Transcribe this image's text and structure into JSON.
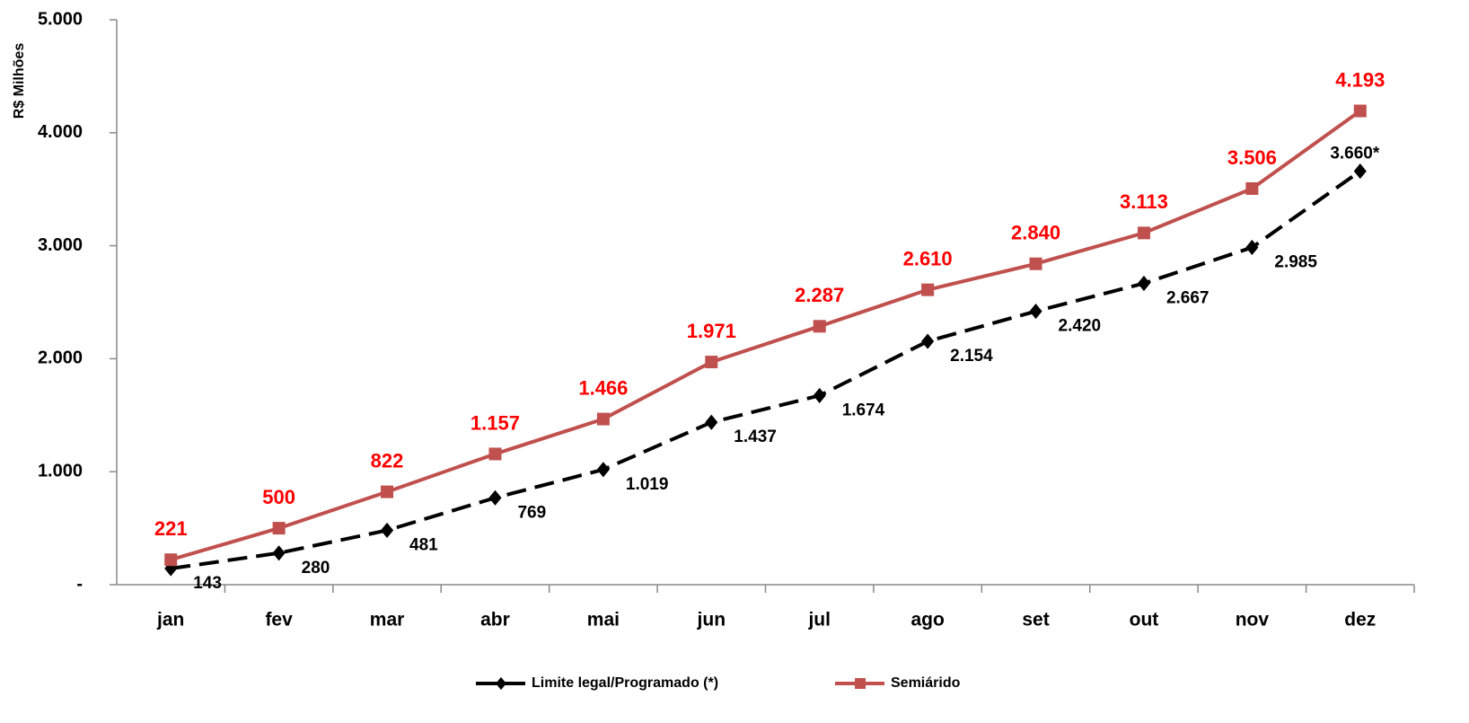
{
  "chart_data": {
    "type": "line",
    "y_label": "R$ Milhões",
    "categories": [
      "jan",
      "fev",
      "mar",
      "abr",
      "mai",
      "jun",
      "jul",
      "ago",
      "set",
      "out",
      "nov",
      "dez"
    ],
    "series": [
      {
        "name": "Limite legal/Programado (*)",
        "color": "#000000",
        "dashed": true,
        "marker": "diamond",
        "values": [
          143,
          280,
          481,
          769,
          1019,
          1437,
          1674,
          2154,
          2420,
          2667,
          2985,
          3660
        ],
        "value_labels": [
          "143",
          "280",
          "481",
          "769",
          "1.019",
          "1.437",
          "1.674",
          "2.154",
          "2.420",
          "2.667",
          "2.985",
          "3.660*"
        ],
        "label_color": "#000000"
      },
      {
        "name": "Semiárido",
        "color": "#c0504d",
        "dashed": false,
        "marker": "square",
        "values": [
          221,
          500,
          822,
          1157,
          1466,
          1971,
          2287,
          2610,
          2840,
          3113,
          3506,
          4193
        ],
        "value_labels": [
          "221",
          "500",
          "822",
          "1.157",
          "1.466",
          "1.971",
          "2.287",
          "2.610",
          "2.840",
          "3.113",
          "3.506",
          "4.193"
        ],
        "label_color": "#ff0000"
      }
    ],
    "ylim": [
      0,
      5000
    ],
    "yticks": [
      {
        "value": 0,
        "label": "-"
      },
      {
        "value": 1000,
        "label": "1.000"
      },
      {
        "value": 2000,
        "label": "2.000"
      },
      {
        "value": 3000,
        "label": "3.000"
      },
      {
        "value": 4000,
        "label": "4.000"
      },
      {
        "value": 5000,
        "label": "5.000"
      }
    ],
    "grid": false,
    "legend": "bottom"
  }
}
